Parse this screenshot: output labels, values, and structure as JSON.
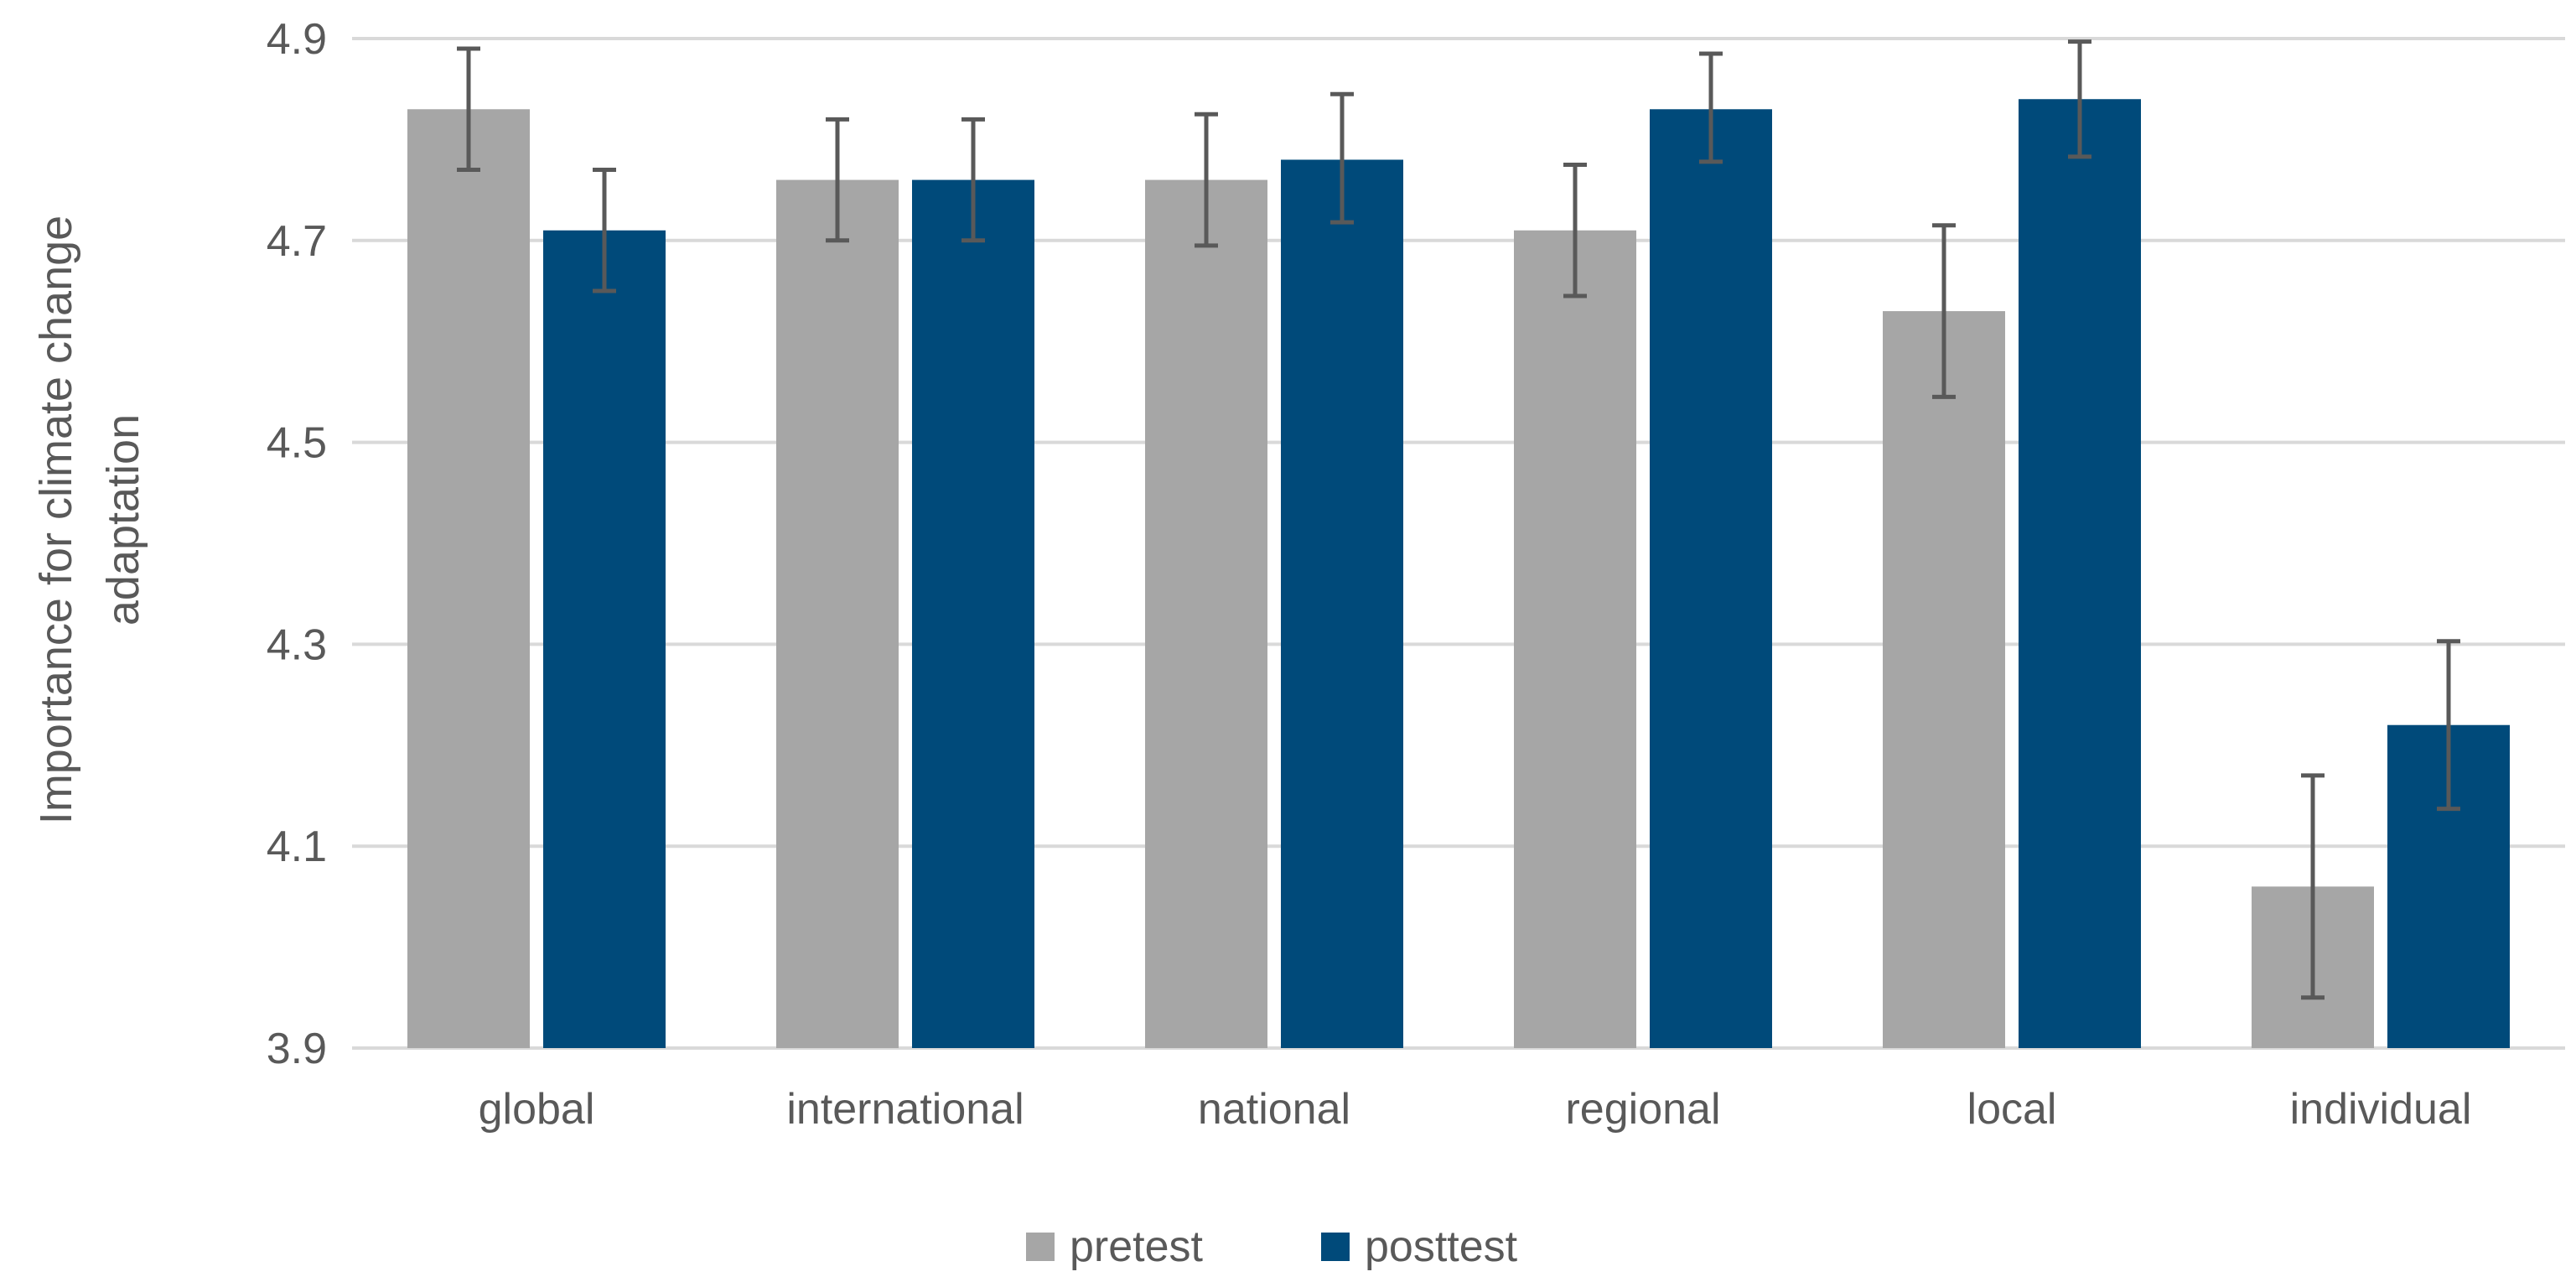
{
  "chart_data": {
    "type": "bar",
    "title": "",
    "xlabel": "",
    "ylabel_lines": [
      "Importance for climate change",
      "adaptation"
    ],
    "ylim": [
      3.9,
      4.9
    ],
    "yticks": [
      3.9,
      4.1,
      4.3,
      4.5,
      4.7,
      4.9
    ],
    "ytick_labels": [
      "3.9",
      "4.1",
      "4.3",
      "4.5",
      "4.7",
      "4.9"
    ],
    "grid": true,
    "legend_position": "bottom-center",
    "categories": [
      "global",
      "international",
      "national",
      "regional",
      "local",
      "individual"
    ],
    "series": [
      {
        "name": "pretest",
        "color": "#a6a6a6",
        "values": [
          4.83,
          4.76,
          4.76,
          4.71,
          4.63,
          4.06
        ],
        "error_low": [
          4.77,
          4.7,
          4.695,
          4.645,
          4.545,
          3.95
        ],
        "error_high": [
          4.89,
          4.82,
          4.825,
          4.775,
          4.715,
          4.17
        ]
      },
      {
        "name": "posttest",
        "color": "#004a7a",
        "values": [
          4.71,
          4.76,
          4.78,
          4.83,
          4.84,
          4.22
        ],
        "error_low": [
          4.65,
          4.7,
          4.718,
          4.778,
          4.783,
          4.137
        ],
        "error_high": [
          4.77,
          4.82,
          4.845,
          4.885,
          4.897,
          4.303
        ]
      }
    ],
    "errorbar_color": "#595959",
    "gridline_color": "#d9d9d9"
  }
}
